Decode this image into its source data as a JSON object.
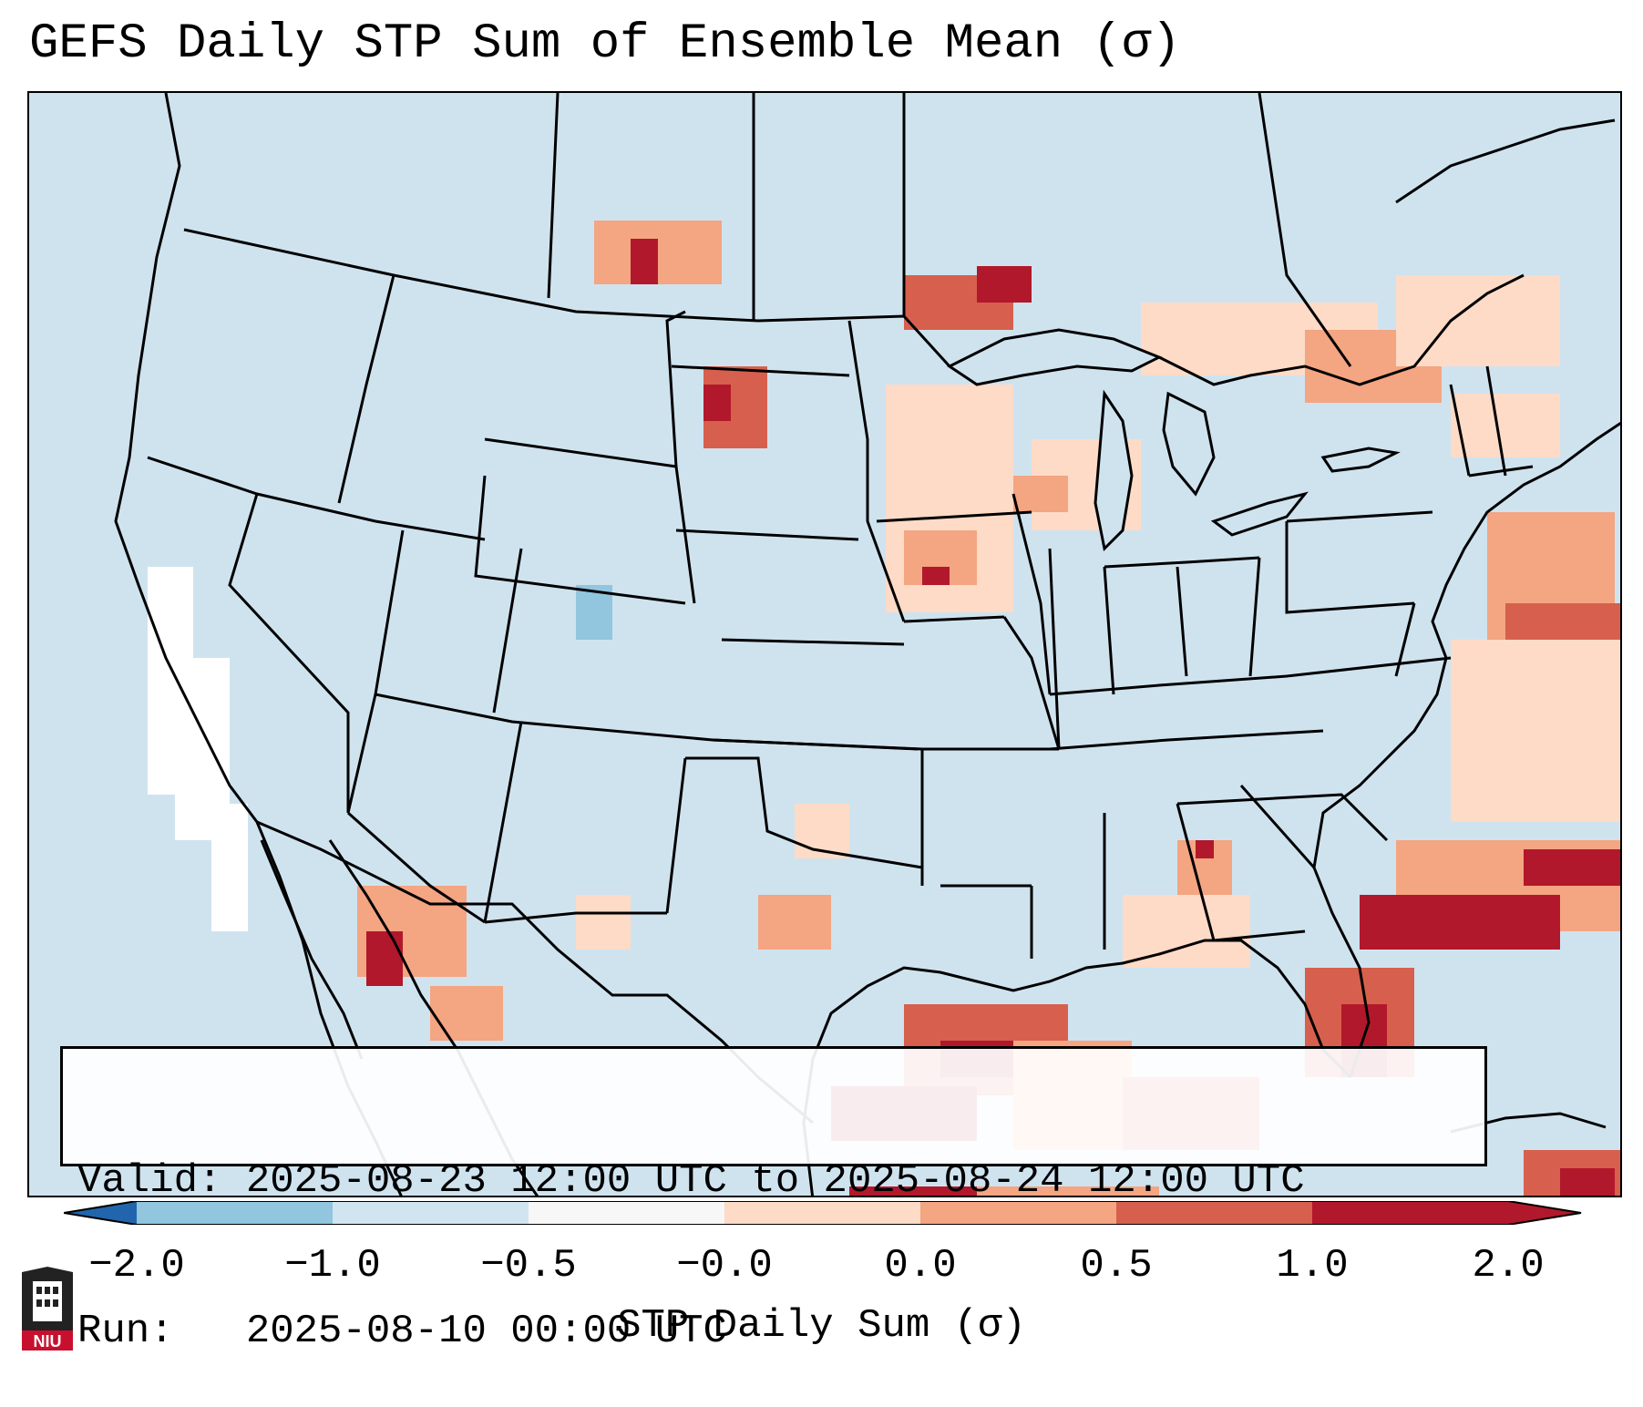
{
  "title": "GEFS Daily STP Sum of Ensemble Mean (σ)",
  "info": {
    "valid_line": "Valid: 2025-08-23 12:00 UTC to 2025-08-24 12:00 UTC",
    "run_line": "Run:   2025-08-10 00:00 UTC"
  },
  "colorbar": {
    "label": "STP Daily Sum (σ)",
    "ticks": [
      "−2.0",
      "−1.0",
      "−0.5",
      "−0.0",
      "0.0",
      "0.5",
      "1.0",
      "2.0"
    ],
    "bin_colors": [
      "#4393c3",
      "#92c5de",
      "#d1e5f0",
      "#f7f7f7",
      "#fddbc7",
      "#f4a582",
      "#d6604d",
      "#b2182b"
    ],
    "under_color": "#2166ac",
    "over_color": "#b2182b"
  },
  "map": {
    "ocean_color": "#d1e5f0",
    "land_color": "#d1e5f0",
    "boundary_color": "#000000"
  },
  "logo": {
    "text": "NIU",
    "color": "#c8102e"
  }
}
